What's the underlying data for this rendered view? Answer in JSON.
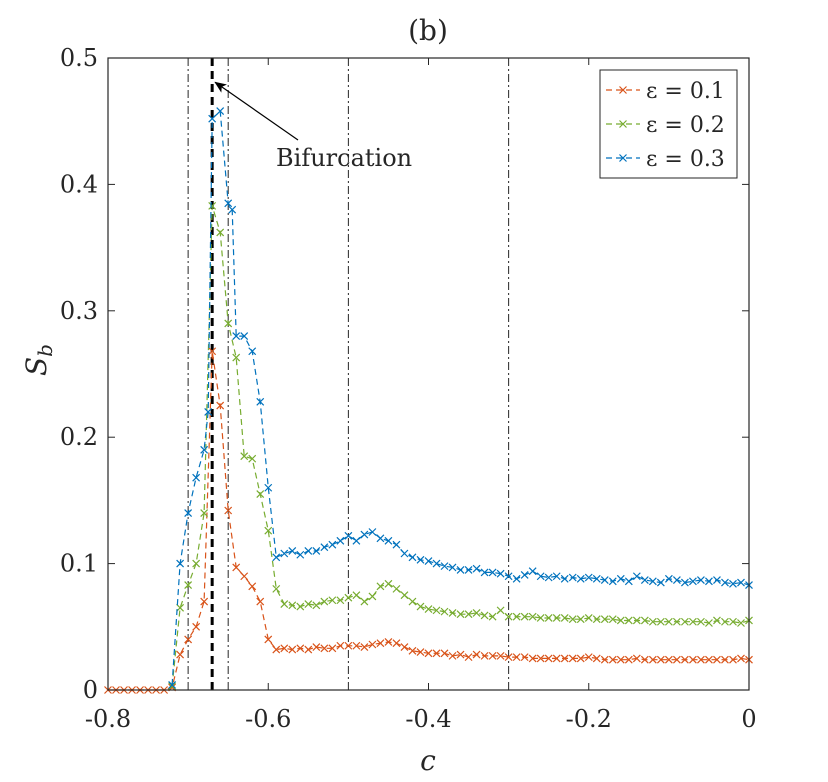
{
  "chart_data": {
    "type": "line",
    "title": "(b)",
    "xlabel": "c",
    "ylabel": "S",
    "ylabel_sub": "b",
    "xlim": [
      -0.8,
      0
    ],
    "ylim": [
      0,
      0.5
    ],
    "xticks": [
      -0.8,
      -0.6,
      -0.4,
      -0.2,
      0
    ],
    "xtick_labels": [
      "-0.8",
      "-0.6",
      "-0.4",
      "-0.2",
      "0"
    ],
    "yticks": [
      0,
      0.1,
      0.2,
      0.3,
      0.4,
      0.5
    ],
    "ytick_labels": [
      "0",
      "0.1",
      "0.2",
      "0.3",
      "0.4",
      "0.5"
    ],
    "grid": false,
    "legend_position": "top-right",
    "vlines_dashdot": [
      -0.7,
      -0.65,
      -0.5,
      -0.3
    ],
    "bifurcation_line": -0.67,
    "annotation": {
      "text": "Bifurcation",
      "points_to": [
        -0.67,
        0.48
      ]
    },
    "series": [
      {
        "name": "ε = 0.1",
        "color": "#d95319",
        "points": [
          [
            -0.8,
            0
          ],
          [
            -0.79,
            0
          ],
          [
            -0.78,
            0
          ],
          [
            -0.77,
            0
          ],
          [
            -0.76,
            0
          ],
          [
            -0.75,
            0
          ],
          [
            -0.74,
            0
          ],
          [
            -0.73,
            0
          ],
          [
            -0.72,
            0.002
          ],
          [
            -0.71,
            0.028
          ],
          [
            -0.7,
            0.04
          ],
          [
            -0.69,
            0.05
          ],
          [
            -0.68,
            0.07
          ],
          [
            -0.67,
            0.268
          ],
          [
            -0.66,
            0.225
          ],
          [
            -0.65,
            0.142
          ],
          [
            -0.64,
            0.097
          ],
          [
            -0.63,
            0.09
          ],
          [
            -0.62,
            0.082
          ],
          [
            -0.61,
            0.07
          ],
          [
            -0.6,
            0.04
          ],
          [
            -0.59,
            0.032
          ],
          [
            -0.58,
            0.033
          ],
          [
            -0.57,
            0.032
          ],
          [
            -0.56,
            0.033
          ],
          [
            -0.55,
            0.032
          ],
          [
            -0.54,
            0.034
          ],
          [
            -0.53,
            0.033
          ],
          [
            -0.52,
            0.033
          ],
          [
            -0.51,
            0.035
          ],
          [
            -0.5,
            0.035
          ],
          [
            -0.49,
            0.035
          ],
          [
            -0.48,
            0.034
          ],
          [
            -0.47,
            0.036
          ],
          [
            -0.46,
            0.037
          ],
          [
            -0.45,
            0.038
          ],
          [
            -0.44,
            0.037
          ],
          [
            -0.43,
            0.034
          ],
          [
            -0.42,
            0.031
          ],
          [
            -0.41,
            0.03
          ],
          [
            -0.4,
            0.029
          ],
          [
            -0.39,
            0.029
          ],
          [
            -0.38,
            0.029
          ],
          [
            -0.37,
            0.027
          ],
          [
            -0.36,
            0.028
          ],
          [
            -0.35,
            0.026
          ],
          [
            -0.34,
            0.028
          ],
          [
            -0.33,
            0.027
          ],
          [
            -0.32,
            0.027
          ],
          [
            -0.31,
            0.027
          ],
          [
            -0.3,
            0.026
          ],
          [
            -0.29,
            0.026
          ],
          [
            -0.28,
            0.026
          ],
          [
            -0.27,
            0.025
          ],
          [
            -0.26,
            0.025
          ],
          [
            -0.25,
            0.025
          ],
          [
            -0.24,
            0.025
          ],
          [
            -0.23,
            0.025
          ],
          [
            -0.22,
            0.025
          ],
          [
            -0.21,
            0.025
          ],
          [
            -0.2,
            0.026
          ],
          [
            -0.19,
            0.025
          ],
          [
            -0.18,
            0.024
          ],
          [
            -0.17,
            0.024
          ],
          [
            -0.16,
            0.024
          ],
          [
            -0.15,
            0.024
          ],
          [
            -0.14,
            0.025
          ],
          [
            -0.13,
            0.024
          ],
          [
            -0.12,
            0.024
          ],
          [
            -0.11,
            0.024
          ],
          [
            -0.1,
            0.024
          ],
          [
            -0.09,
            0.024
          ],
          [
            -0.08,
            0.024
          ],
          [
            -0.07,
            0.024
          ],
          [
            -0.06,
            0.024
          ],
          [
            -0.05,
            0.024
          ],
          [
            -0.04,
            0.024
          ],
          [
            -0.03,
            0.024
          ],
          [
            -0.02,
            0.024
          ],
          [
            -0.01,
            0.025
          ],
          [
            0,
            0.024
          ]
        ]
      },
      {
        "name": "ε = 0.2",
        "color": "#77ac30",
        "points": [
          [
            -0.72,
            0.003
          ],
          [
            -0.71,
            0.065
          ],
          [
            -0.7,
            0.083
          ],
          [
            -0.69,
            0.1
          ],
          [
            -0.68,
            0.14
          ],
          [
            -0.67,
            0.383
          ],
          [
            -0.66,
            0.362
          ],
          [
            -0.65,
            0.29
          ],
          [
            -0.64,
            0.263
          ],
          [
            -0.63,
            0.185
          ],
          [
            -0.62,
            0.183
          ],
          [
            -0.61,
            0.155
          ],
          [
            -0.6,
            0.126
          ],
          [
            -0.59,
            0.08
          ],
          [
            -0.58,
            0.068
          ],
          [
            -0.57,
            0.067
          ],
          [
            -0.56,
            0.066
          ],
          [
            -0.55,
            0.068
          ],
          [
            -0.54,
            0.067
          ],
          [
            -0.53,
            0.07
          ],
          [
            -0.52,
            0.071
          ],
          [
            -0.51,
            0.071
          ],
          [
            -0.5,
            0.073
          ],
          [
            -0.49,
            0.075
          ],
          [
            -0.48,
            0.07
          ],
          [
            -0.47,
            0.074
          ],
          [
            -0.46,
            0.082
          ],
          [
            -0.45,
            0.084
          ],
          [
            -0.44,
            0.08
          ],
          [
            -0.43,
            0.075
          ],
          [
            -0.42,
            0.07
          ],
          [
            -0.41,
            0.066
          ],
          [
            -0.4,
            0.064
          ],
          [
            -0.39,
            0.063
          ],
          [
            -0.38,
            0.062
          ],
          [
            -0.37,
            0.061
          ],
          [
            -0.36,
            0.06
          ],
          [
            -0.35,
            0.06
          ],
          [
            -0.34,
            0.061
          ],
          [
            -0.33,
            0.059
          ],
          [
            -0.32,
            0.058
          ],
          [
            -0.31,
            0.063
          ],
          [
            -0.3,
            0.058
          ],
          [
            -0.29,
            0.058
          ],
          [
            -0.28,
            0.058
          ],
          [
            -0.27,
            0.058
          ],
          [
            -0.26,
            0.057
          ],
          [
            -0.25,
            0.057
          ],
          [
            -0.24,
            0.057
          ],
          [
            -0.23,
            0.057
          ],
          [
            -0.22,
            0.056
          ],
          [
            -0.21,
            0.056
          ],
          [
            -0.2,
            0.057
          ],
          [
            -0.19,
            0.056
          ],
          [
            -0.18,
            0.056
          ],
          [
            -0.17,
            0.056
          ],
          [
            -0.16,
            0.055
          ],
          [
            -0.15,
            0.055
          ],
          [
            -0.14,
            0.055
          ],
          [
            -0.13,
            0.055
          ],
          [
            -0.12,
            0.054
          ],
          [
            -0.11,
            0.054
          ],
          [
            -0.1,
            0.054
          ],
          [
            -0.09,
            0.054
          ],
          [
            -0.08,
            0.054
          ],
          [
            -0.07,
            0.054
          ],
          [
            -0.06,
            0.054
          ],
          [
            -0.05,
            0.053
          ],
          [
            -0.04,
            0.055
          ],
          [
            -0.03,
            0.054
          ],
          [
            -0.02,
            0.054
          ],
          [
            -0.01,
            0.053
          ],
          [
            0,
            0.055
          ]
        ]
      },
      {
        "name": "ε = 0.3",
        "color": "#0072bd",
        "points": [
          [
            -0.72,
            0.004
          ],
          [
            -0.71,
            0.1
          ],
          [
            -0.7,
            0.14
          ],
          [
            -0.69,
            0.168
          ],
          [
            -0.68,
            0.19
          ],
          [
            -0.675,
            0.22
          ],
          [
            -0.67,
            0.452
          ],
          [
            -0.66,
            0.458
          ],
          [
            -0.65,
            0.385
          ],
          [
            -0.645,
            0.38
          ],
          [
            -0.64,
            0.28
          ],
          [
            -0.63,
            0.28
          ],
          [
            -0.62,
            0.268
          ],
          [
            -0.61,
            0.228
          ],
          [
            -0.6,
            0.16
          ],
          [
            -0.59,
            0.105
          ],
          [
            -0.58,
            0.108
          ],
          [
            -0.57,
            0.11
          ],
          [
            -0.56,
            0.107
          ],
          [
            -0.55,
            0.11
          ],
          [
            -0.54,
            0.11
          ],
          [
            -0.53,
            0.113
          ],
          [
            -0.52,
            0.115
          ],
          [
            -0.51,
            0.118
          ],
          [
            -0.5,
            0.122
          ],
          [
            -0.49,
            0.118
          ],
          [
            -0.48,
            0.123
          ],
          [
            -0.47,
            0.125
          ],
          [
            -0.46,
            0.12
          ],
          [
            -0.45,
            0.118
          ],
          [
            -0.44,
            0.115
          ],
          [
            -0.43,
            0.108
          ],
          [
            -0.42,
            0.105
          ],
          [
            -0.41,
            0.103
          ],
          [
            -0.4,
            0.102
          ],
          [
            -0.39,
            0.1
          ],
          [
            -0.38,
            0.098
          ],
          [
            -0.37,
            0.097
          ],
          [
            -0.36,
            0.095
          ],
          [
            -0.35,
            0.095
          ],
          [
            -0.34,
            0.096
          ],
          [
            -0.33,
            0.093
          ],
          [
            -0.32,
            0.093
          ],
          [
            -0.31,
            0.092
          ],
          [
            -0.3,
            0.09
          ],
          [
            -0.29,
            0.088
          ],
          [
            -0.28,
            0.091
          ],
          [
            -0.27,
            0.094
          ],
          [
            -0.26,
            0.09
          ],
          [
            -0.25,
            0.089
          ],
          [
            -0.24,
            0.09
          ],
          [
            -0.23,
            0.088
          ],
          [
            -0.22,
            0.089
          ],
          [
            -0.21,
            0.088
          ],
          [
            -0.2,
            0.089
          ],
          [
            -0.19,
            0.088
          ],
          [
            -0.18,
            0.087
          ],
          [
            -0.17,
            0.086
          ],
          [
            -0.16,
            0.088
          ],
          [
            -0.15,
            0.086
          ],
          [
            -0.14,
            0.09
          ],
          [
            -0.13,
            0.087
          ],
          [
            -0.12,
            0.086
          ],
          [
            -0.11,
            0.085
          ],
          [
            -0.1,
            0.088
          ],
          [
            -0.09,
            0.087
          ],
          [
            -0.08,
            0.085
          ],
          [
            -0.07,
            0.086
          ],
          [
            -0.06,
            0.087
          ],
          [
            -0.05,
            0.086
          ],
          [
            -0.04,
            0.087
          ],
          [
            -0.03,
            0.085
          ],
          [
            -0.02,
            0.084
          ],
          [
            -0.01,
            0.085
          ],
          [
            0,
            0.083
          ]
        ]
      }
    ]
  }
}
